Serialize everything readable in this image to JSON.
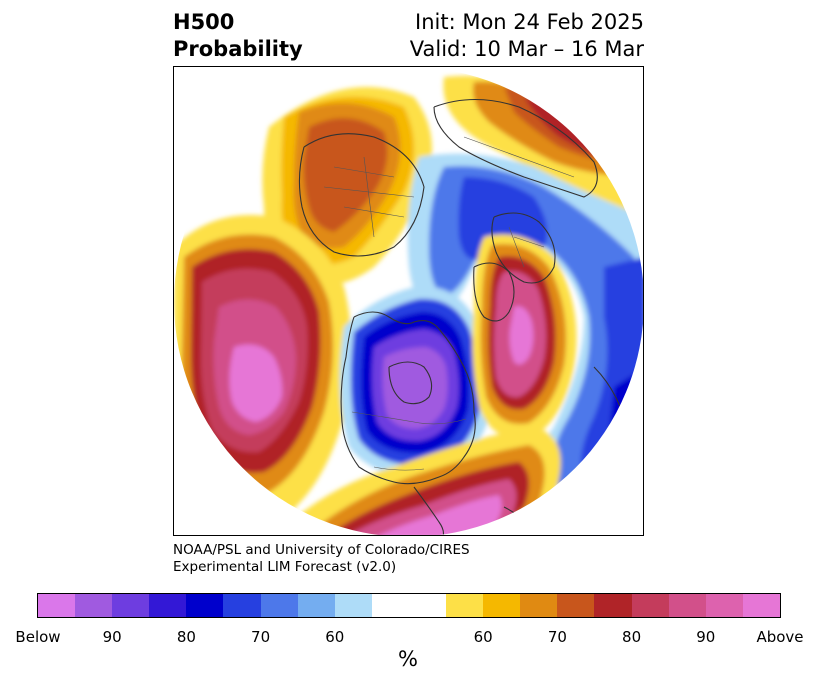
{
  "header": {
    "left_line1": "H500",
    "left_line2": "Probability",
    "init": "Init: Mon 24 Feb 2025",
    "valid": "Valid: 10 Mar – 16 Mar"
  },
  "credit": {
    "line1": "NOAA/PSL and University of Colorado/CIRES",
    "line2": "Experimental LIM Forecast (v2.0)"
  },
  "colorbar": {
    "colors": [
      "#da77ea",
      "#a05ae0",
      "#6e3de0",
      "#3318d6",
      "#0000cc",
      "#2640e0",
      "#4d78ea",
      "#74adf0",
      "#aedcf8",
      "#ffffff",
      "#ffffff",
      "#fde047",
      "#f5b800",
      "#e08a12",
      "#c8561c",
      "#b02428",
      "#c43c5c",
      "#d2508a",
      "#dd62ae",
      "#e676d6"
    ],
    "ticks": [
      "Below",
      "90",
      "80",
      "70",
      "60",
      "",
      "60",
      "70",
      "80",
      "90",
      "Above"
    ],
    "units": "%"
  },
  "map": {
    "palette": {
      "below_90": "#da77ea",
      "below_80": "#6e3de0",
      "below_70": "#0000cc",
      "below_60": "#4d78ea",
      "below_50": "#aedcf8",
      "above_50": "#fde047",
      "above_60": "#f5b800",
      "above_70": "#e08a12",
      "above_75": "#c8561c",
      "above_80": "#b02428",
      "above_85": "#c43c5c",
      "above_90": "#d2508a",
      "above_95": "#e676d6"
    }
  }
}
